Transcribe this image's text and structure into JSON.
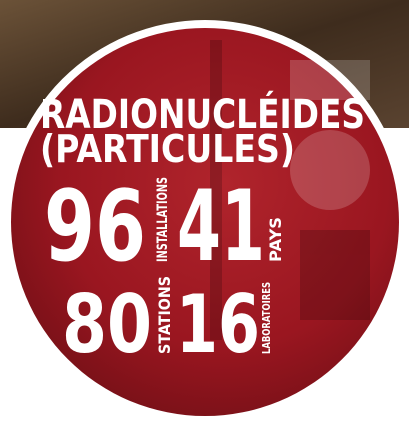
{
  "title": [
    "RADIONUCLÉIDES",
    "(PARTICULES)"
  ],
  "stats": [
    {
      "number": "96",
      "label": "INSTALLATIONS"
    },
    {
      "number": "41",
      "label": "PAYS"
    },
    {
      "number": "80",
      "label": "STATIONS"
    },
    {
      "number": "16",
      "label": "LABORATOIRES"
    }
  ]
}
